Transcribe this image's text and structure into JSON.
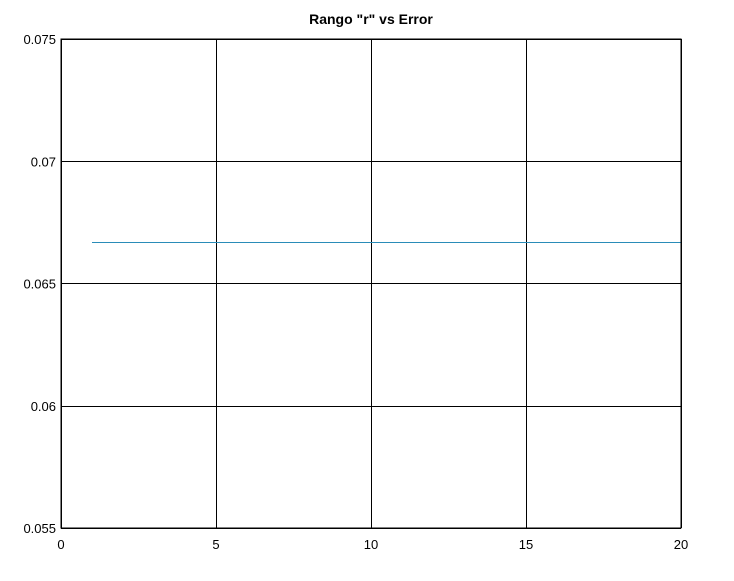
{
  "chart_data": {
    "type": "line",
    "title": "Rango \"r\" vs Error",
    "xlabel": "",
    "ylabel": "",
    "xlim": [
      0,
      20
    ],
    "ylim": [
      0.055,
      0.075
    ],
    "grid": true,
    "x_ticks": [
      {
        "value": 0,
        "label": "0"
      },
      {
        "value": 5,
        "label": "5"
      },
      {
        "value": 10,
        "label": "10"
      },
      {
        "value": 15,
        "label": "15"
      },
      {
        "value": 20,
        "label": "20"
      }
    ],
    "y_ticks": [
      {
        "value": 0.055,
        "label": "0.055"
      },
      {
        "value": 0.06,
        "label": "0.06"
      },
      {
        "value": 0.065,
        "label": "0.065"
      },
      {
        "value": 0.07,
        "label": "0.07"
      },
      {
        "value": 0.075,
        "label": "0.075"
      }
    ],
    "series": [
      {
        "color": "#2a8cb8",
        "x": [
          1,
          2,
          3,
          4,
          5,
          6,
          7,
          8,
          9,
          10,
          11,
          12,
          13,
          14,
          15,
          16,
          17,
          18,
          19,
          20
        ],
        "values": [
          0.0667,
          0.0667,
          0.0667,
          0.0667,
          0.0667,
          0.0667,
          0.0667,
          0.0667,
          0.0667,
          0.0667,
          0.0667,
          0.0667,
          0.0667,
          0.0667,
          0.0667,
          0.0667,
          0.0667,
          0.0667,
          0.0667,
          0.0667
        ]
      }
    ]
  }
}
